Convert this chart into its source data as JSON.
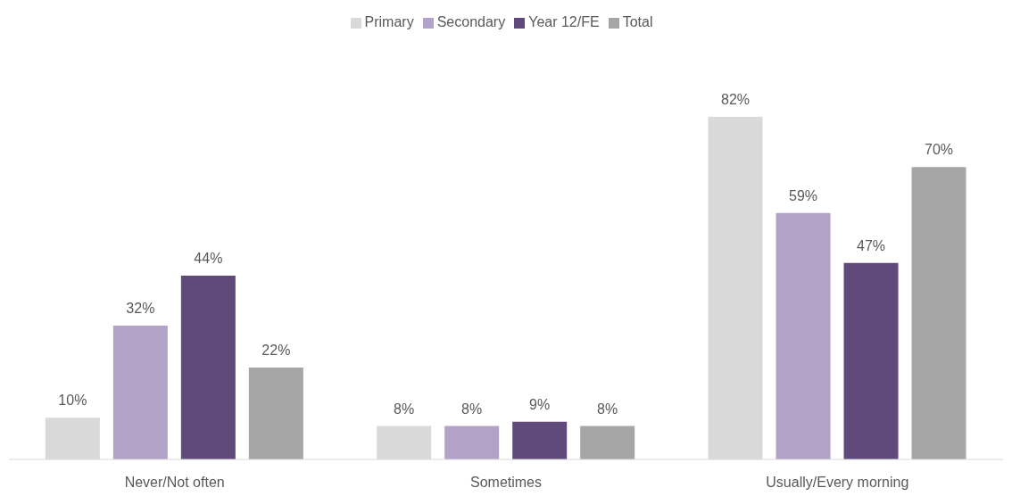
{
  "chart_data": {
    "type": "bar",
    "categories": [
      "Never/Not often",
      "Sometimes",
      "Usually/Every morning"
    ],
    "series": [
      {
        "name": "Primary",
        "color": "#d9d9d9",
        "values": [
          10,
          8,
          82
        ],
        "value_labels": [
          "10%",
          "8%",
          "82%"
        ]
      },
      {
        "name": "Secondary",
        "color": "#b3a2c7",
        "values": [
          32,
          8,
          59
        ],
        "value_labels": [
          "32%",
          "8%",
          "59%"
        ]
      },
      {
        "name": "Year 12/FE",
        "color": "#604a7b",
        "values": [
          44,
          9,
          47
        ],
        "value_labels": [
          "44%",
          "9%",
          "47%"
        ]
      },
      {
        "name": "Total",
        "color": "#a6a6a6",
        "values": [
          22,
          8,
          70
        ],
        "value_labels": [
          "22%",
          "8%",
          "70%"
        ]
      }
    ],
    "legend": "top",
    "grid": false
  }
}
